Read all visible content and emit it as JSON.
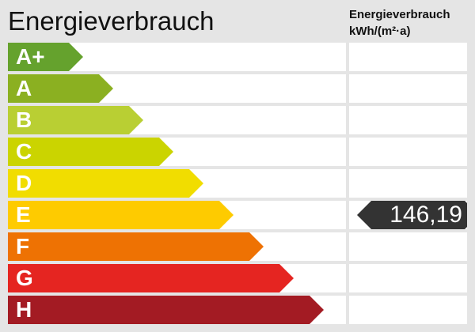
{
  "chart_data": {
    "type": "bar",
    "title": "Energieverbrauch",
    "column_header": [
      "Energieverbrauch",
      "kWh/(m²·a)"
    ],
    "categories": [
      "A+",
      "A",
      "B",
      "C",
      "D",
      "E",
      "F",
      "G",
      "H"
    ],
    "colors": [
      "#65a22d",
      "#8bb021",
      "#b9cf33",
      "#cbd400",
      "#f1dd00",
      "#fecb00",
      "#ee7203",
      "#e52521",
      "#a31b23"
    ],
    "marker": {
      "class": "E",
      "value": "146,19",
      "color": "#333333"
    }
  }
}
